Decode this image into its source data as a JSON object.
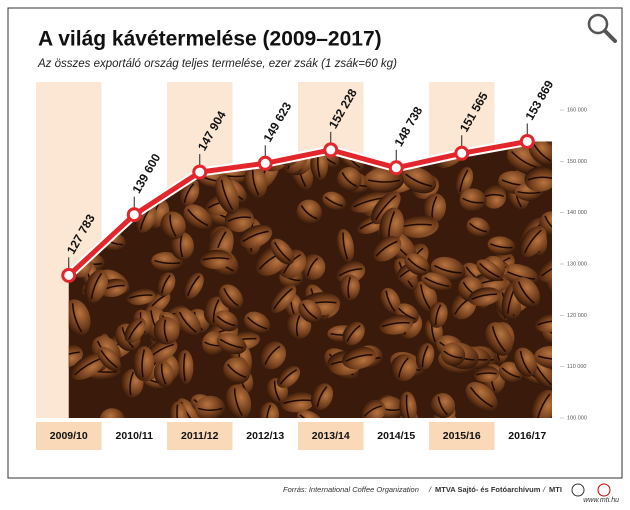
{
  "chart_data": {
    "type": "line",
    "title": "A világ kávétermelése (2009–2017)",
    "subtitle": "Az összes exportáló ország teljes termelése, ezer zsák (1 zsák=60 kg)",
    "categories": [
      "2009/10",
      "2010/11",
      "2011/12",
      "2012/13",
      "2013/14",
      "2014/15",
      "2015/16",
      "2016/17"
    ],
    "values": [
      127783,
      139600,
      147904,
      149623,
      152228,
      148738,
      151565,
      153869
    ],
    "value_labels": [
      "127 783",
      "139 600",
      "147 904",
      "149 623",
      "152 228",
      "148 738",
      "151 565",
      "153 869"
    ],
    "color": "#e3262b",
    "ylim": [
      100000,
      160000
    ],
    "yticks": [
      {
        "value": 100000,
        "label": "100 000"
      },
      {
        "value": 110000,
        "label": "110 000"
      },
      {
        "value": 120000,
        "label": "120 000"
      },
      {
        "value": 130000,
        "label": "130 000"
      },
      {
        "value": 140000,
        "label": "140 000"
      },
      {
        "value": 150000,
        "label": "150 000"
      },
      {
        "value": 160000,
        "label": "160 000"
      }
    ]
  },
  "footer": {
    "source": "Forrás: International Coffee Organization",
    "separator": "/",
    "agency": "MTVA Sajtó- és Fotóarchívum",
    "mti": "MTI",
    "url": "www.mti.hu"
  }
}
